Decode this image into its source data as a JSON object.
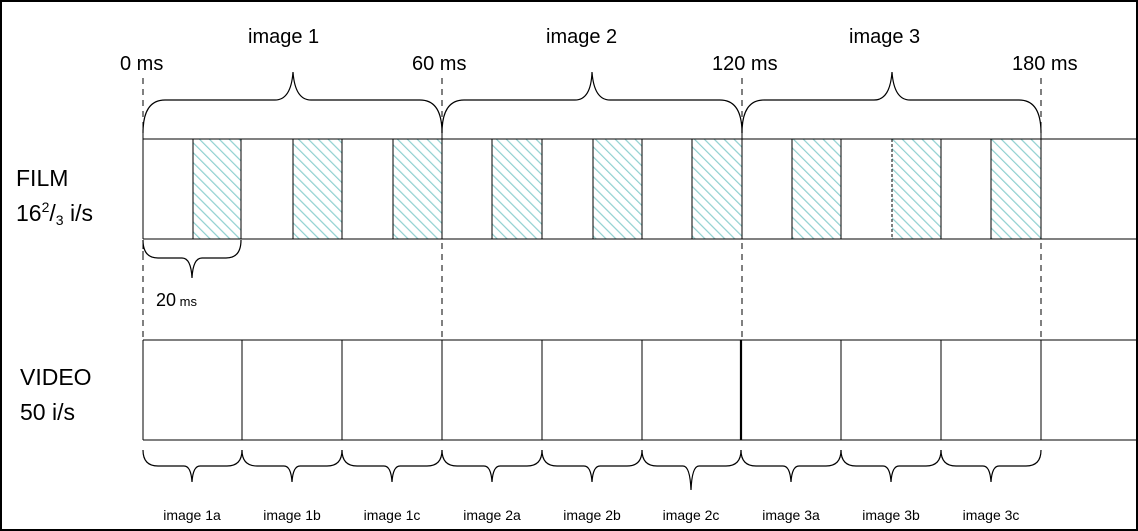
{
  "time_markers": [
    "0 ms",
    "60 ms",
    "120 ms",
    "180 ms"
  ],
  "groups": [
    "image 1",
    "image 2",
    "image 3"
  ],
  "film": {
    "label_main": "FILM",
    "rate_prefix": "16",
    "rate_sup": "2",
    "rate_slash": "/",
    "rate_sub": "3",
    "rate_unit": " i/s"
  },
  "interval": {
    "value": "20",
    "unit": " ms"
  },
  "video": {
    "label_main": "VIDEO",
    "label_rate": "50 i/s"
  },
  "video_frames": [
    "image 1a",
    "image 1b",
    "image 1c",
    "image 2a",
    "image 2b",
    "image 2c",
    "image 3a",
    "image 3b",
    "image 3c"
  ],
  "colors": {
    "hatch": "#8fd0d0",
    "line": "#000000",
    "frame_border": "#000000",
    "background": "#ffffff"
  }
}
